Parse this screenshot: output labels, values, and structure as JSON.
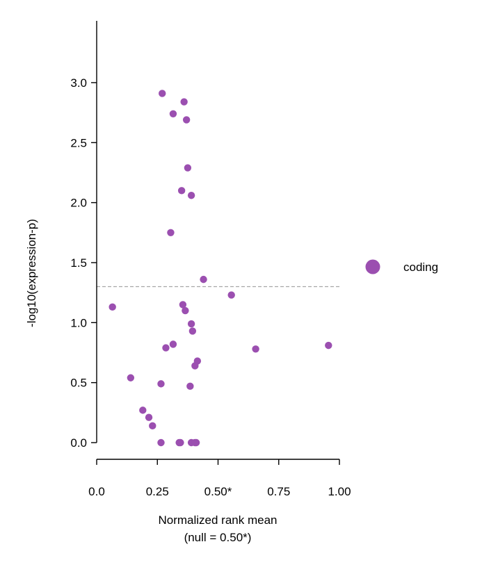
{
  "chart_data": {
    "type": "scatter",
    "xlabel": "Normalized rank mean",
    "xlabel_note": "(null = 0.50*)",
    "ylabel": "-log10(expression-p)",
    "xlim": [
      0,
      1
    ],
    "ylim": [
      -0.13,
      3.5
    ],
    "xticks": [
      0,
      0.25,
      0.5,
      0.75,
      1
    ],
    "xtick_labels": [
      "0.0",
      "0.25",
      "0.50*",
      "0.75",
      "1.00"
    ],
    "yticks": [
      0,
      0.5,
      1,
      1.5,
      2,
      2.5,
      3
    ],
    "ytick_labels": [
      "0.0",
      "0.5",
      "1.0",
      "1.5",
      "2.0",
      "2.5",
      "3.0"
    ],
    "threshold_y": 1.3,
    "grid": false,
    "legend_position": "right",
    "series": [
      {
        "name": "coding",
        "color": "#9b4fb0",
        "points": [
          {
            "x": 0.27,
            "y": 2.91
          },
          {
            "x": 0.36,
            "y": 2.84
          },
          {
            "x": 0.315,
            "y": 2.74
          },
          {
            "x": 0.37,
            "y": 2.69
          },
          {
            "x": 0.375,
            "y": 2.29
          },
          {
            "x": 0.35,
            "y": 2.1
          },
          {
            "x": 0.39,
            "y": 2.06
          },
          {
            "x": 0.305,
            "y": 1.75
          },
          {
            "x": 0.44,
            "y": 1.36
          },
          {
            "x": 0.555,
            "y": 1.23
          },
          {
            "x": 0.065,
            "y": 1.13
          },
          {
            "x": 0.355,
            "y": 1.15
          },
          {
            "x": 0.365,
            "y": 1.1
          },
          {
            "x": 0.39,
            "y": 0.99
          },
          {
            "x": 0.395,
            "y": 0.93
          },
          {
            "x": 0.315,
            "y": 0.82
          },
          {
            "x": 0.285,
            "y": 0.79
          },
          {
            "x": 0.655,
            "y": 0.78
          },
          {
            "x": 0.955,
            "y": 0.81
          },
          {
            "x": 0.415,
            "y": 0.68
          },
          {
            "x": 0.405,
            "y": 0.64
          },
          {
            "x": 0.14,
            "y": 0.54
          },
          {
            "x": 0.265,
            "y": 0.49
          },
          {
            "x": 0.385,
            "y": 0.47
          },
          {
            "x": 0.19,
            "y": 0.27
          },
          {
            "x": 0.215,
            "y": 0.21
          },
          {
            "x": 0.23,
            "y": 0.14
          },
          {
            "x": 0.265,
            "y": 0.0
          },
          {
            "x": 0.34,
            "y": 0.0
          },
          {
            "x": 0.345,
            "y": 0.0
          },
          {
            "x": 0.39,
            "y": 0.0
          },
          {
            "x": 0.41,
            "y": 0.0
          },
          {
            "x": 0.405,
            "y": 0.0
          }
        ]
      }
    ]
  }
}
